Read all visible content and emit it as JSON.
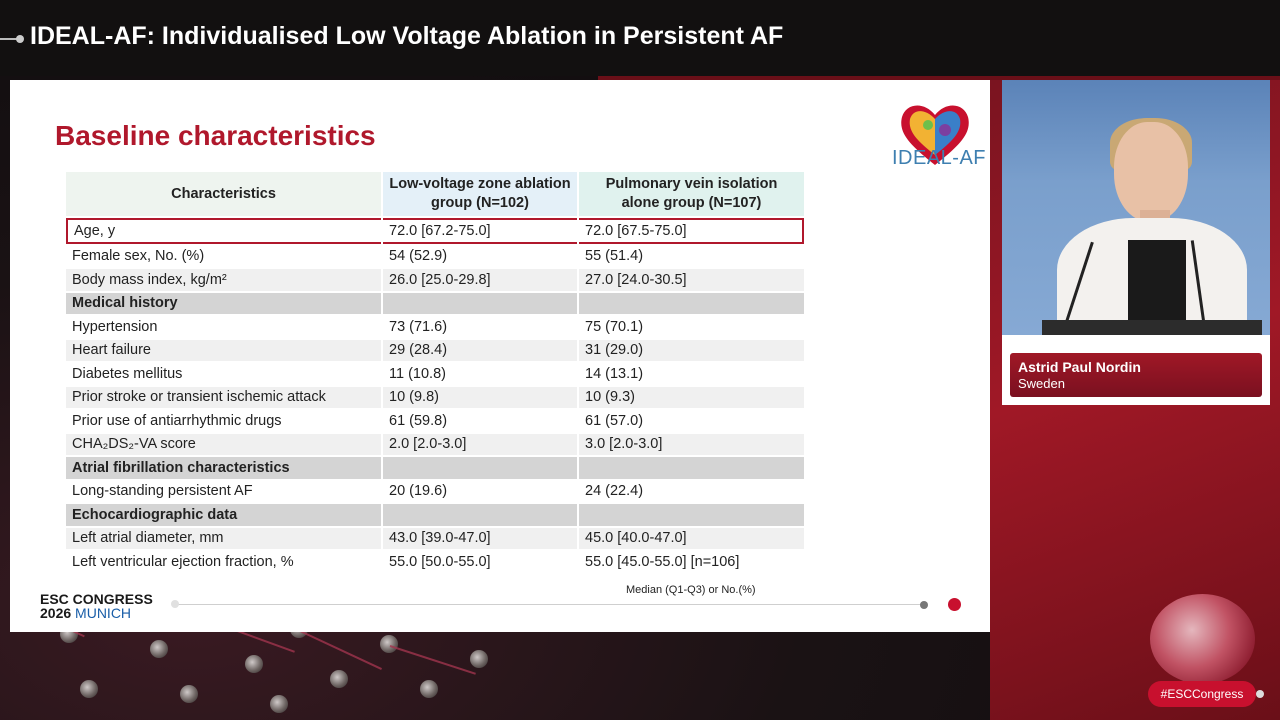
{
  "header": {
    "title": "IDEAL-AF: Individualised Low Voltage Ablation in Persistent AF"
  },
  "slide": {
    "title": "Baseline characteristics",
    "logo_text": "IDEAL-AF",
    "columns": [
      "Characteristics",
      "Low-voltage zone ablation group (N=102)",
      "Pulmonary vein isolation alone group (N=107)"
    ],
    "rows": [
      {
        "label": "Age, y",
        "a": "72.0 [67.2-75.0]",
        "b": "72.0 [67.5-75.0]"
      },
      {
        "label": "Female sex, No. (%)",
        "a": "54 (52.9)",
        "b": "55 (51.4)"
      },
      {
        "label": "Body mass index, kg/m²",
        "a": "26.0 [25.0-29.8]",
        "b": "27.0 [24.0-30.5]"
      },
      {
        "label": "Medical history",
        "a": "",
        "b": ""
      },
      {
        "label": "Hypertension",
        "a": "73 (71.6)",
        "b": "75 (70.1)"
      },
      {
        "label": "Heart failure",
        "a": "29 (28.4)",
        "b": "31 (29.0)"
      },
      {
        "label": "Diabetes mellitus",
        "a": "11 (10.8)",
        "b": "14 (13.1)"
      },
      {
        "label": "Prior stroke or transient ischemic attack",
        "a": "10 (9.8)",
        "b": "10 (9.3)"
      },
      {
        "label": "Prior use of antiarrhythmic drugs",
        "a": "61 (59.8)",
        "b": "61 (57.0)"
      },
      {
        "label": "CHA₂DS₂-VA score",
        "a": "2.0 [2.0-3.0]",
        "b": "3.0 [2.0-3.0]"
      },
      {
        "label": "Atrial fibrillation characteristics",
        "a": "",
        "b": ""
      },
      {
        "label": "Long-standing persistent AF",
        "a": "20 (19.6)",
        "b": "24 (22.4)"
      },
      {
        "label": "Echocardiographic data",
        "a": "",
        "b": ""
      },
      {
        "label": "Left atrial diameter, mm",
        "a": "43.0 [39.0-47.0]",
        "b": "45.0 [40.0-47.0]"
      },
      {
        "label": "Left ventricular ejection fraction, %",
        "a": "55.0 [50.0-55.0]",
        "b": "55.0 [45.0-55.0] [n=106]"
      }
    ],
    "footnote": "Median (Q1-Q3) or No.(%)",
    "congress_line1": "ESC CONGRESS",
    "congress_year": "2026",
    "congress_city": "MUNICH"
  },
  "speaker": {
    "name": "Astrid Paul Nordin",
    "country": "Sweden"
  },
  "hashtag": "#ESCCongress",
  "colors": {
    "brand_red": "#b0182c",
    "accent_blue": "#3e7fb0",
    "panel_red": "#a01826"
  }
}
